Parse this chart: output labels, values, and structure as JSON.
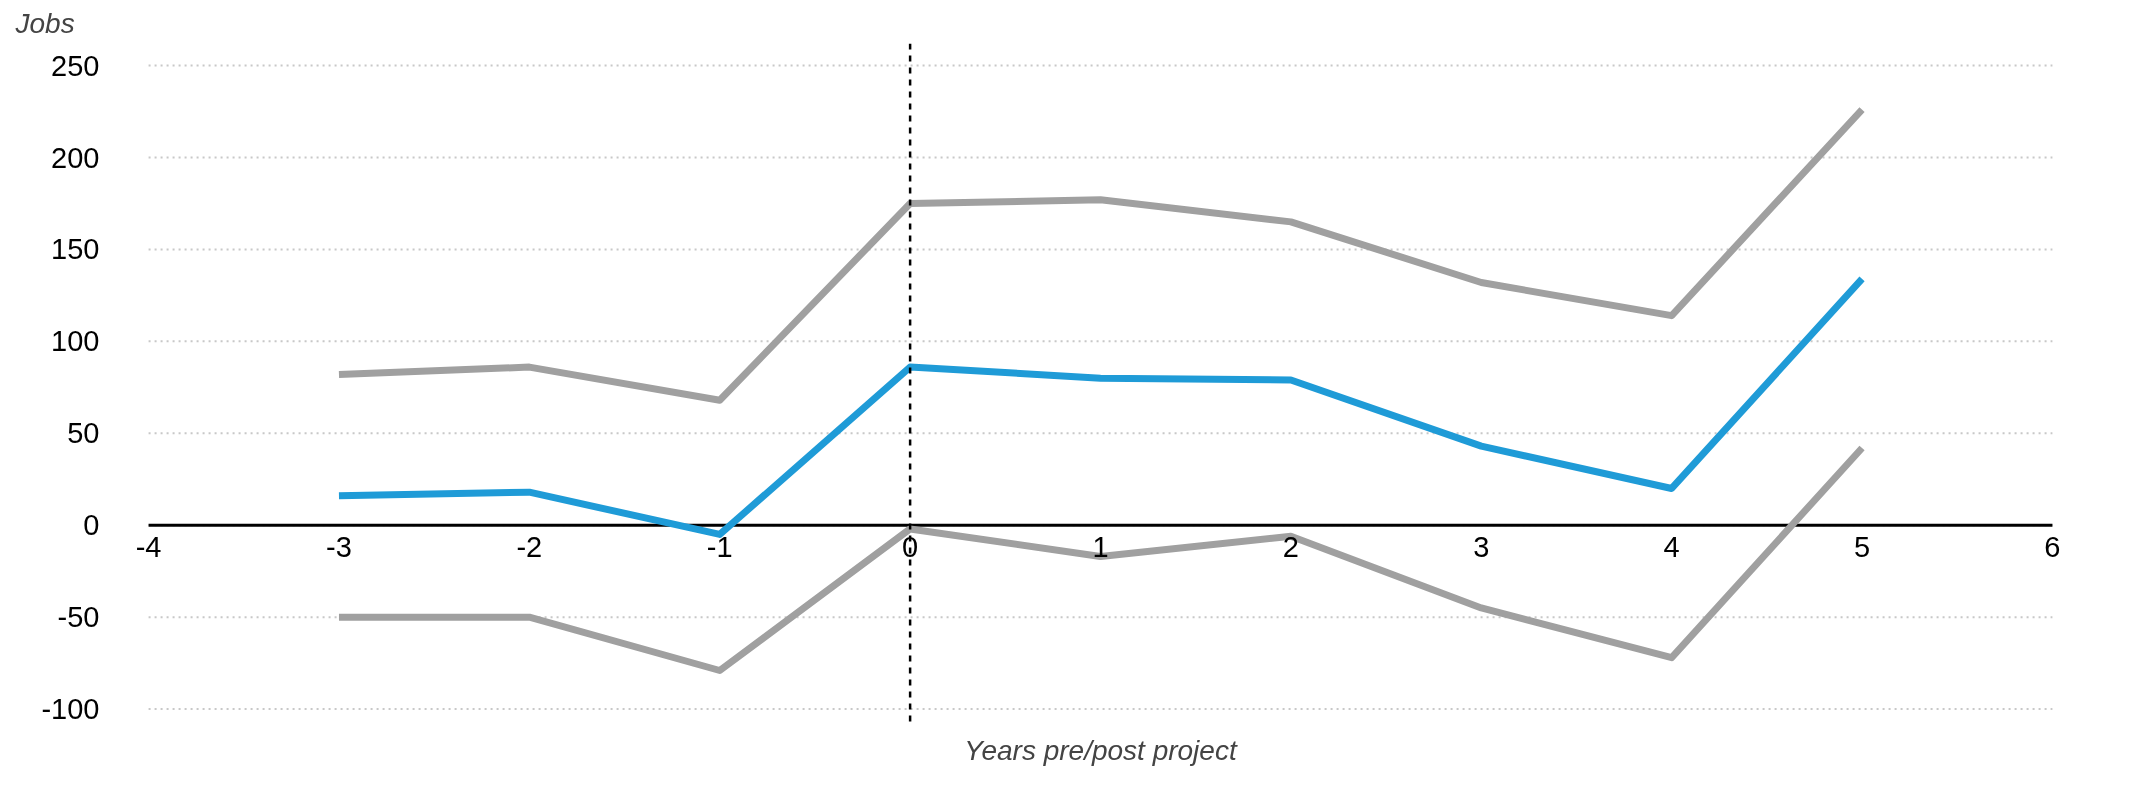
{
  "chart_data": {
    "type": "line",
    "xlabel": "Years pre/post project",
    "ylabel": "Jobs",
    "x": [
      -3,
      -2,
      -1,
      0,
      1,
      2,
      3,
      4,
      5
    ],
    "series": [
      {
        "color": "#a0a0a0",
        "values": [
          82,
          86,
          68,
          175,
          177,
          165,
          132,
          114,
          226
        ]
      },
      {
        "color": "#1f9bd7",
        "values": [
          16,
          18,
          -5,
          86,
          80,
          79,
          43,
          20,
          134
        ]
      },
      {
        "color": "#a0a0a0",
        "values": [
          -50,
          -50,
          -79,
          -2,
          -17,
          -6,
          -45,
          -72,
          42
        ]
      }
    ],
    "xlim": [
      -4,
      6
    ],
    "xticks": [
      -4,
      -3,
      -2,
      -1,
      0,
      1,
      2,
      3,
      4,
      5,
      6
    ],
    "ylim": [
      -110,
      262
    ],
    "yticks": [
      -100,
      -50,
      0,
      50,
      100,
      150,
      200,
      250
    ],
    "ref_lines": [
      {
        "axis": "x",
        "value": 0,
        "color": "#000000",
        "line_style": "dashed"
      }
    ],
    "grid": "y",
    "marker": "none",
    "line_style": "solid"
  }
}
